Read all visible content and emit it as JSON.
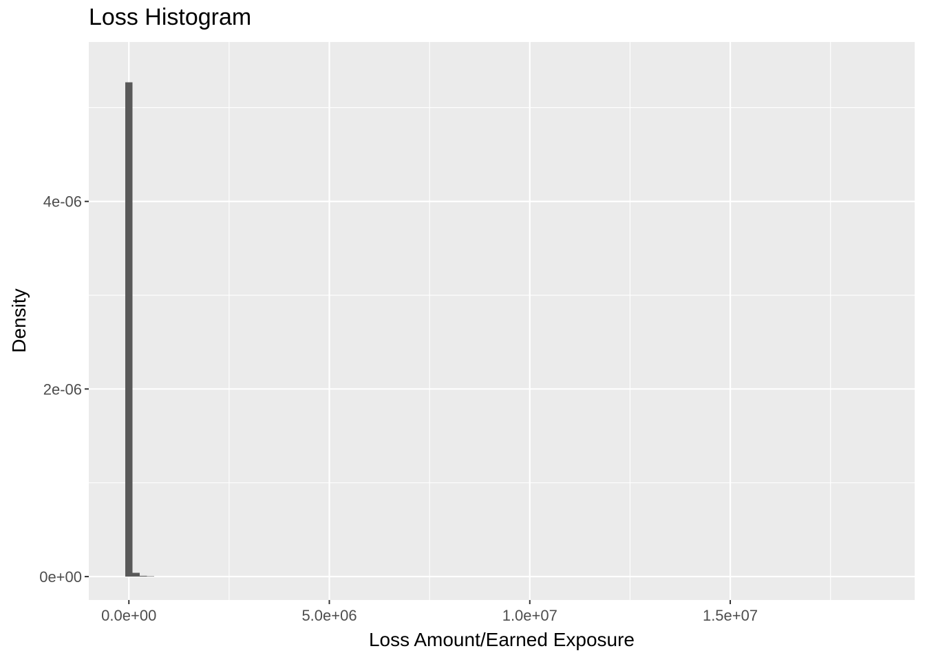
{
  "chart_data": {
    "type": "bar",
    "title": "Loss Histogram",
    "xlabel": "Loss Amount/Earned Exposure",
    "ylabel": "Density",
    "xlim": [
      -1000000,
      19600000
    ],
    "ylim": [
      -2.5e-07,
      5.7e-06
    ],
    "x_ticks": [
      0,
      5000000,
      10000000,
      15000000
    ],
    "x_tick_labels": [
      "0.0e+00",
      "5.0e+06",
      "1.0e+07",
      "1.5e+07"
    ],
    "y_ticks": [
      0,
      2e-06,
      4e-06
    ],
    "y_tick_labels": [
      "0e+00",
      "2e-06",
      "4e-06"
    ],
    "grid": true,
    "background": "#ebebeb",
    "bar_color": "#595959",
    "bins": [
      {
        "start": -90000,
        "end": 90000,
        "density": 5.27e-06
      },
      {
        "start": 90000,
        "end": 270000,
        "density": 4e-08
      },
      {
        "start": 270000,
        "end": 450000,
        "density": 8e-09
      },
      {
        "start": 450000,
        "end": 630000,
        "density": 4e-09
      }
    ]
  }
}
